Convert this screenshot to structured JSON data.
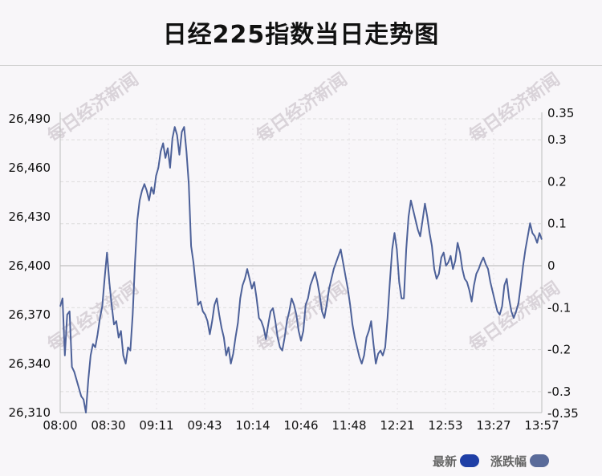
{
  "title": "日经225指数当日走势图",
  "watermark": "每日经济新闻",
  "colors": {
    "line": "#4d6199",
    "latest_swatch": "#1f3fa6",
    "change_swatch": "#5a6b9a",
    "grid": "#dcdcdc",
    "zero": "#c9c9c9"
  },
  "legend": [
    {
      "label": "最新",
      "color": "#1f3fa6"
    },
    {
      "label": "涨跌幅",
      "color": "#5a6b9a"
    }
  ],
  "chart_data": {
    "type": "line",
    "title": "日经225指数当日走势图",
    "x_ticks": [
      "08:00",
      "08:30",
      "09:11",
      "09:43",
      "10:14",
      "10:46",
      "11:48",
      "12:21",
      "12:53",
      "13:27",
      "13:57"
    ],
    "y_left": {
      "ticks": [
        "26,490",
        "26,460",
        "26,430",
        "26,400",
        "26,370",
        "26,340",
        "26,310"
      ],
      "ylim": [
        26310,
        26490
      ]
    },
    "y_right": {
      "ticks": [
        "0.35",
        "0.3",
        "0.2",
        "0.1",
        "0",
        "-0.1",
        "-0.2",
        "-0.3",
        "-0.35"
      ],
      "ylim": [
        -0.35,
        0.35
      ]
    },
    "reference_value": 26400,
    "grid": true,
    "series": [
      {
        "name": "最新",
        "values": [
          26375,
          26380,
          26345,
          26370,
          26372,
          26338,
          26335,
          26330,
          26325,
          26320,
          26318,
          26310,
          26330,
          26345,
          26352,
          26350,
          26358,
          26368,
          26375,
          26392,
          26408,
          26390,
          26376,
          26364,
          26366,
          26356,
          26360,
          26345,
          26340,
          26350,
          26348,
          26370,
          26402,
          26428,
          26440,
          26446,
          26450,
          26446,
          26440,
          26448,
          26444,
          26455,
          26460,
          26470,
          26475,
          26466,
          26472,
          26460,
          26478,
          26485,
          26480,
          26468,
          26482,
          26485,
          26470,
          26450,
          26412,
          26402,
          26388,
          26376,
          26378,
          26372,
          26370,
          26366,
          26358,
          26366,
          26376,
          26380,
          26370,
          26362,
          26356,
          26345,
          26350,
          26340,
          26346,
          26356,
          26365,
          26380,
          26388,
          26392,
          26398,
          26392,
          26386,
          26390,
          26380,
          26368,
          26366,
          26362,
          26355,
          26364,
          26372,
          26374,
          26366,
          26356,
          26350,
          26348,
          26356,
          26366,
          26372,
          26380,
          26376,
          26370,
          26360,
          26354,
          26360,
          26376,
          26380,
          26388,
          26392,
          26396,
          26390,
          26382,
          26372,
          26368,
          26376,
          26386,
          26392,
          26398,
          26402,
          26406,
          26410,
          26402,
          26394,
          26386,
          26376,
          26364,
          26356,
          26350,
          26344,
          26340,
          26345,
          26356,
          26360,
          26366,
          26352,
          26340,
          26346,
          26348,
          26345,
          26350,
          26368,
          26390,
          26410,
          26420,
          26410,
          26390,
          26380,
          26380,
          26410,
          26430,
          26440,
          26434,
          26428,
          26422,
          26418,
          26428,
          26438,
          26430,
          26420,
          26412,
          26398,
          26392,
          26395,
          26405,
          26408,
          26400,
          26402,
          26406,
          26398,
          26403,
          26414,
          26408,
          26398,
          26392,
          26390,
          26385,
          26378,
          26388,
          26395,
          26398,
          26402,
          26405,
          26401,
          26398,
          26390,
          26384,
          26378,
          26372,
          26370,
          26375,
          26388,
          26392,
          26380,
          26372,
          26368,
          26372,
          26377,
          26388,
          26400,
          26410,
          26418,
          26426,
          26420,
          26418,
          26414,
          26420,
          26416
        ]
      }
    ]
  }
}
